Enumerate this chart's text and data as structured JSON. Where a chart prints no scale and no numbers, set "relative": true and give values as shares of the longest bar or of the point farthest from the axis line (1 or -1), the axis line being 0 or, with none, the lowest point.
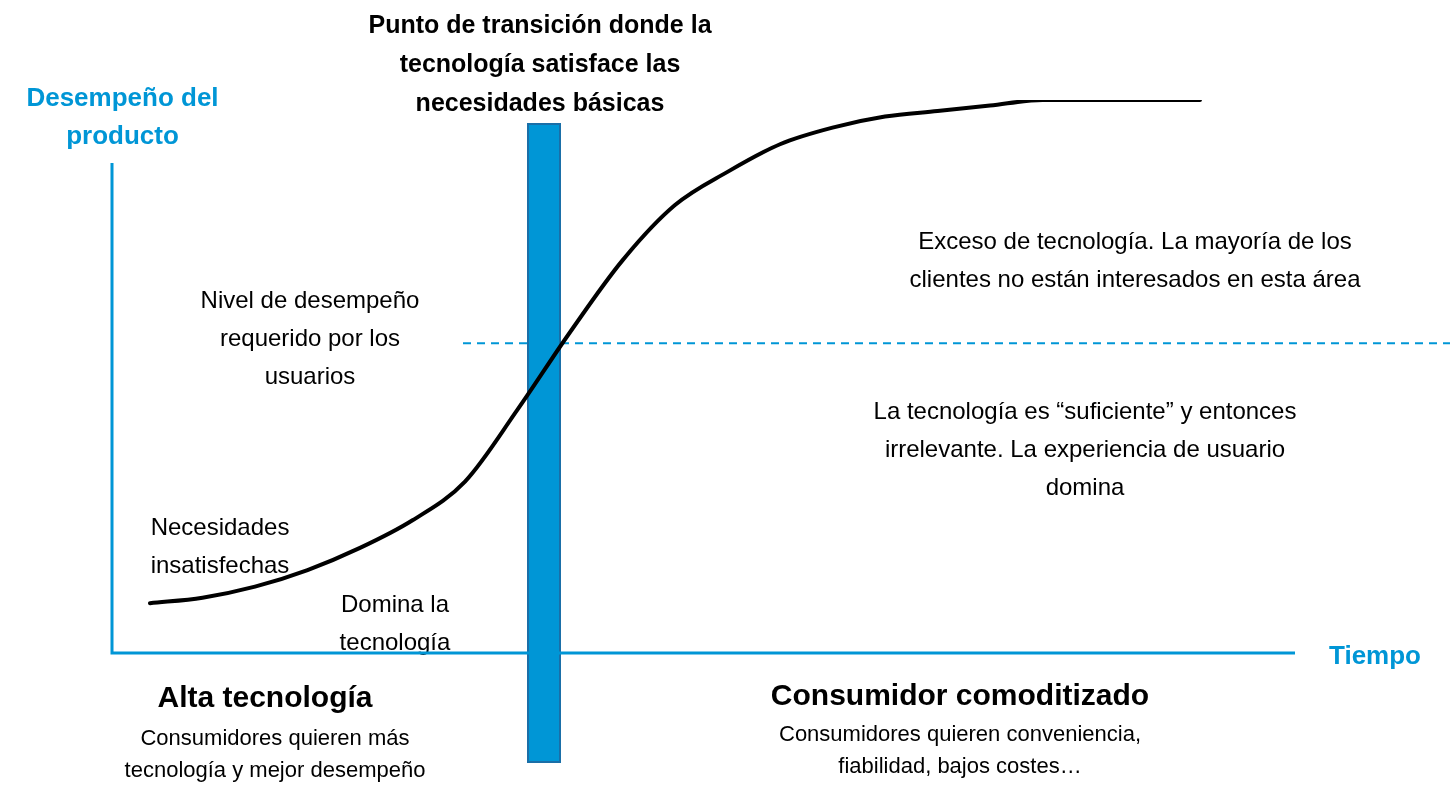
{
  "chart_data": {
    "type": "line",
    "relative": true,
    "ylabel": "Desempeño del producto",
    "xlabel": "Tiempo",
    "categories": [
      null,
      null,
      null,
      null,
      null,
      null,
      null,
      null,
      null,
      null,
      null,
      null,
      null,
      null,
      null,
      null,
      null,
      null,
      null,
      null,
      null
    ],
    "series": [
      {
        "color": "#000000",
        "values": [
          0.09,
          0.1,
          0.12,
          0.15,
          0.19,
          0.24,
          0.31,
          0.44,
          0.58,
          0.71,
          0.81,
          0.87,
          0.92,
          0.95,
          0.97,
          0.98,
          0.99,
          1.0,
          1.0,
          1.0,
          1.0
        ]
      }
    ],
    "ref_lines": [
      {
        "axis": "y",
        "value": 0.56,
        "label": "Nivel de desempeño requerido por los usuarios",
        "color": "#0096d6",
        "line_style": "dashed"
      }
    ],
    "annotations": [
      "Punto de transición donde la tecnología satisface las necesidades básicas",
      "Exceso de tecnología. La mayoría de los clientes no están interesados en esta área",
      "La tecnología es “suficiente” y entonces irrelevante. La experiencia de usuario domina",
      "Necesidades insatisfechas",
      "Domina la tecnología",
      "Alta tecnología",
      "Consumidores quieren más tecnología y mejor desempeño",
      "Consumidor comoditizado",
      "Consumidores quieren conveniencia, fiabilidad, bajos costes…"
    ],
    "legend": false,
    "marker": "none",
    "line_style": "solid"
  }
}
